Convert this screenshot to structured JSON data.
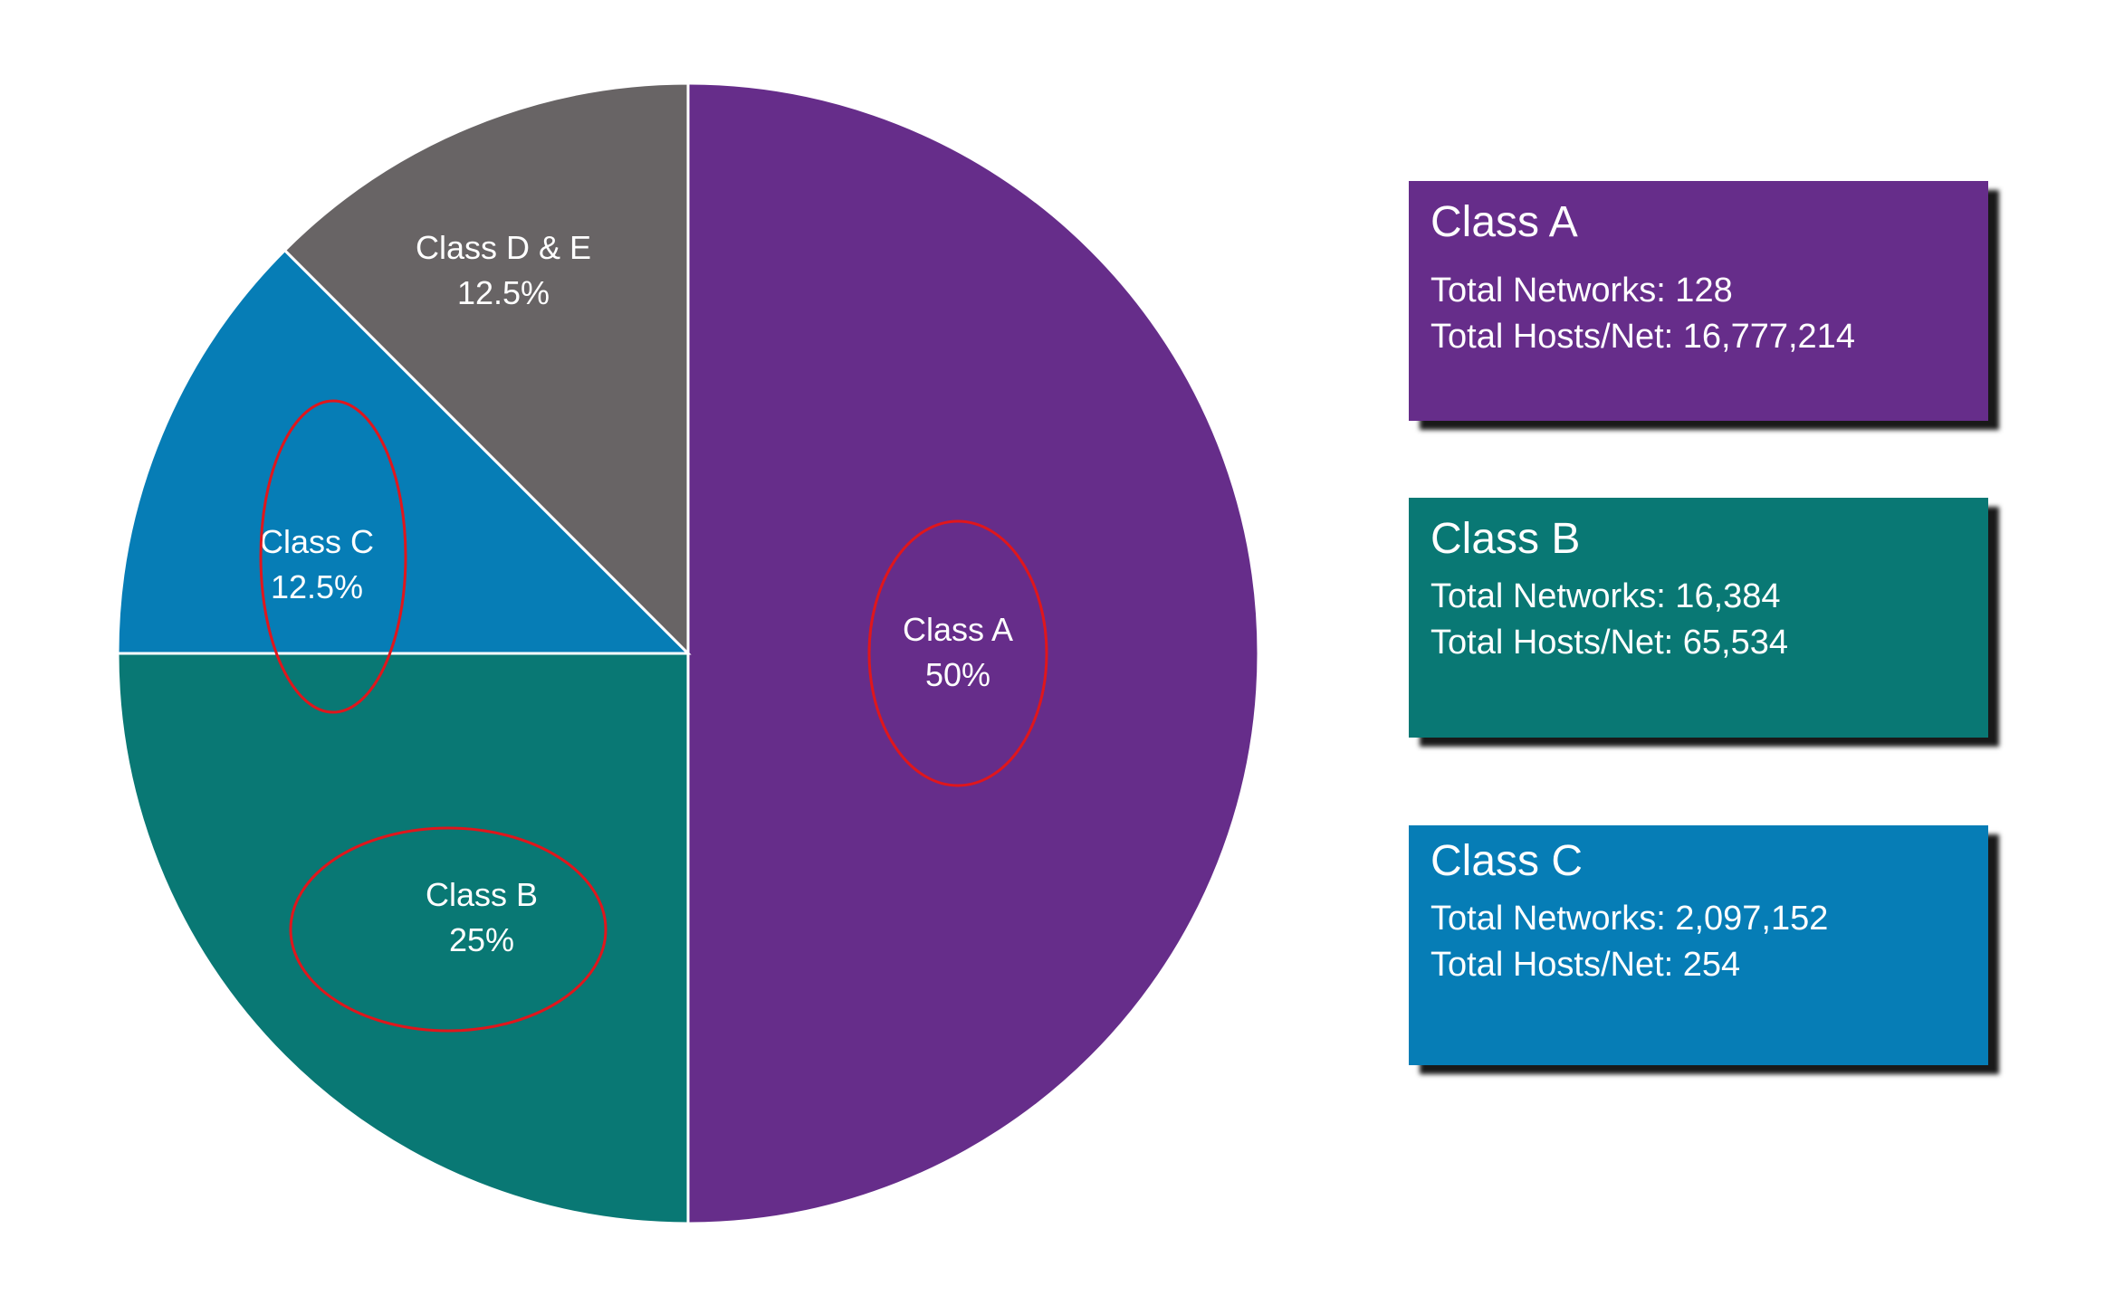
{
  "chart_data": {
    "type": "pie",
    "slices": [
      {
        "name": "Class A",
        "label": "Class A",
        "pct_label": "50%",
        "value": 50,
        "color": "#662d8a"
      },
      {
        "name": "Class B",
        "label": "Class B",
        "pct_label": "25%",
        "value": 25,
        "color": "#097874"
      },
      {
        "name": "Class C",
        "label": "Class C",
        "pct_label": "12.5%",
        "value": 12.5,
        "color": "#067db6"
      },
      {
        "name": "Class D & E",
        "label": "Class D & E",
        "pct_label": "12.5%",
        "value": 12.5,
        "color": "#686465"
      }
    ],
    "highlighted": [
      "Class A",
      "Class B",
      "Class C"
    ],
    "highlight_color": "#e0161c"
  },
  "cards": [
    {
      "title": "Class A",
      "networks": "Total Networks: 128",
      "hosts": "Total Hosts/Net: 16,777,214",
      "color": "#662d8a"
    },
    {
      "title": "Class B",
      "networks": "Total Networks: 16,384",
      "hosts": "Total Hosts/Net: 65,534",
      "color": "#097874"
    },
    {
      "title": "Class C",
      "networks": "Total Networks: 2,097,152",
      "hosts": "Total Hosts/Net: 254",
      "color": "#067db6"
    }
  ]
}
